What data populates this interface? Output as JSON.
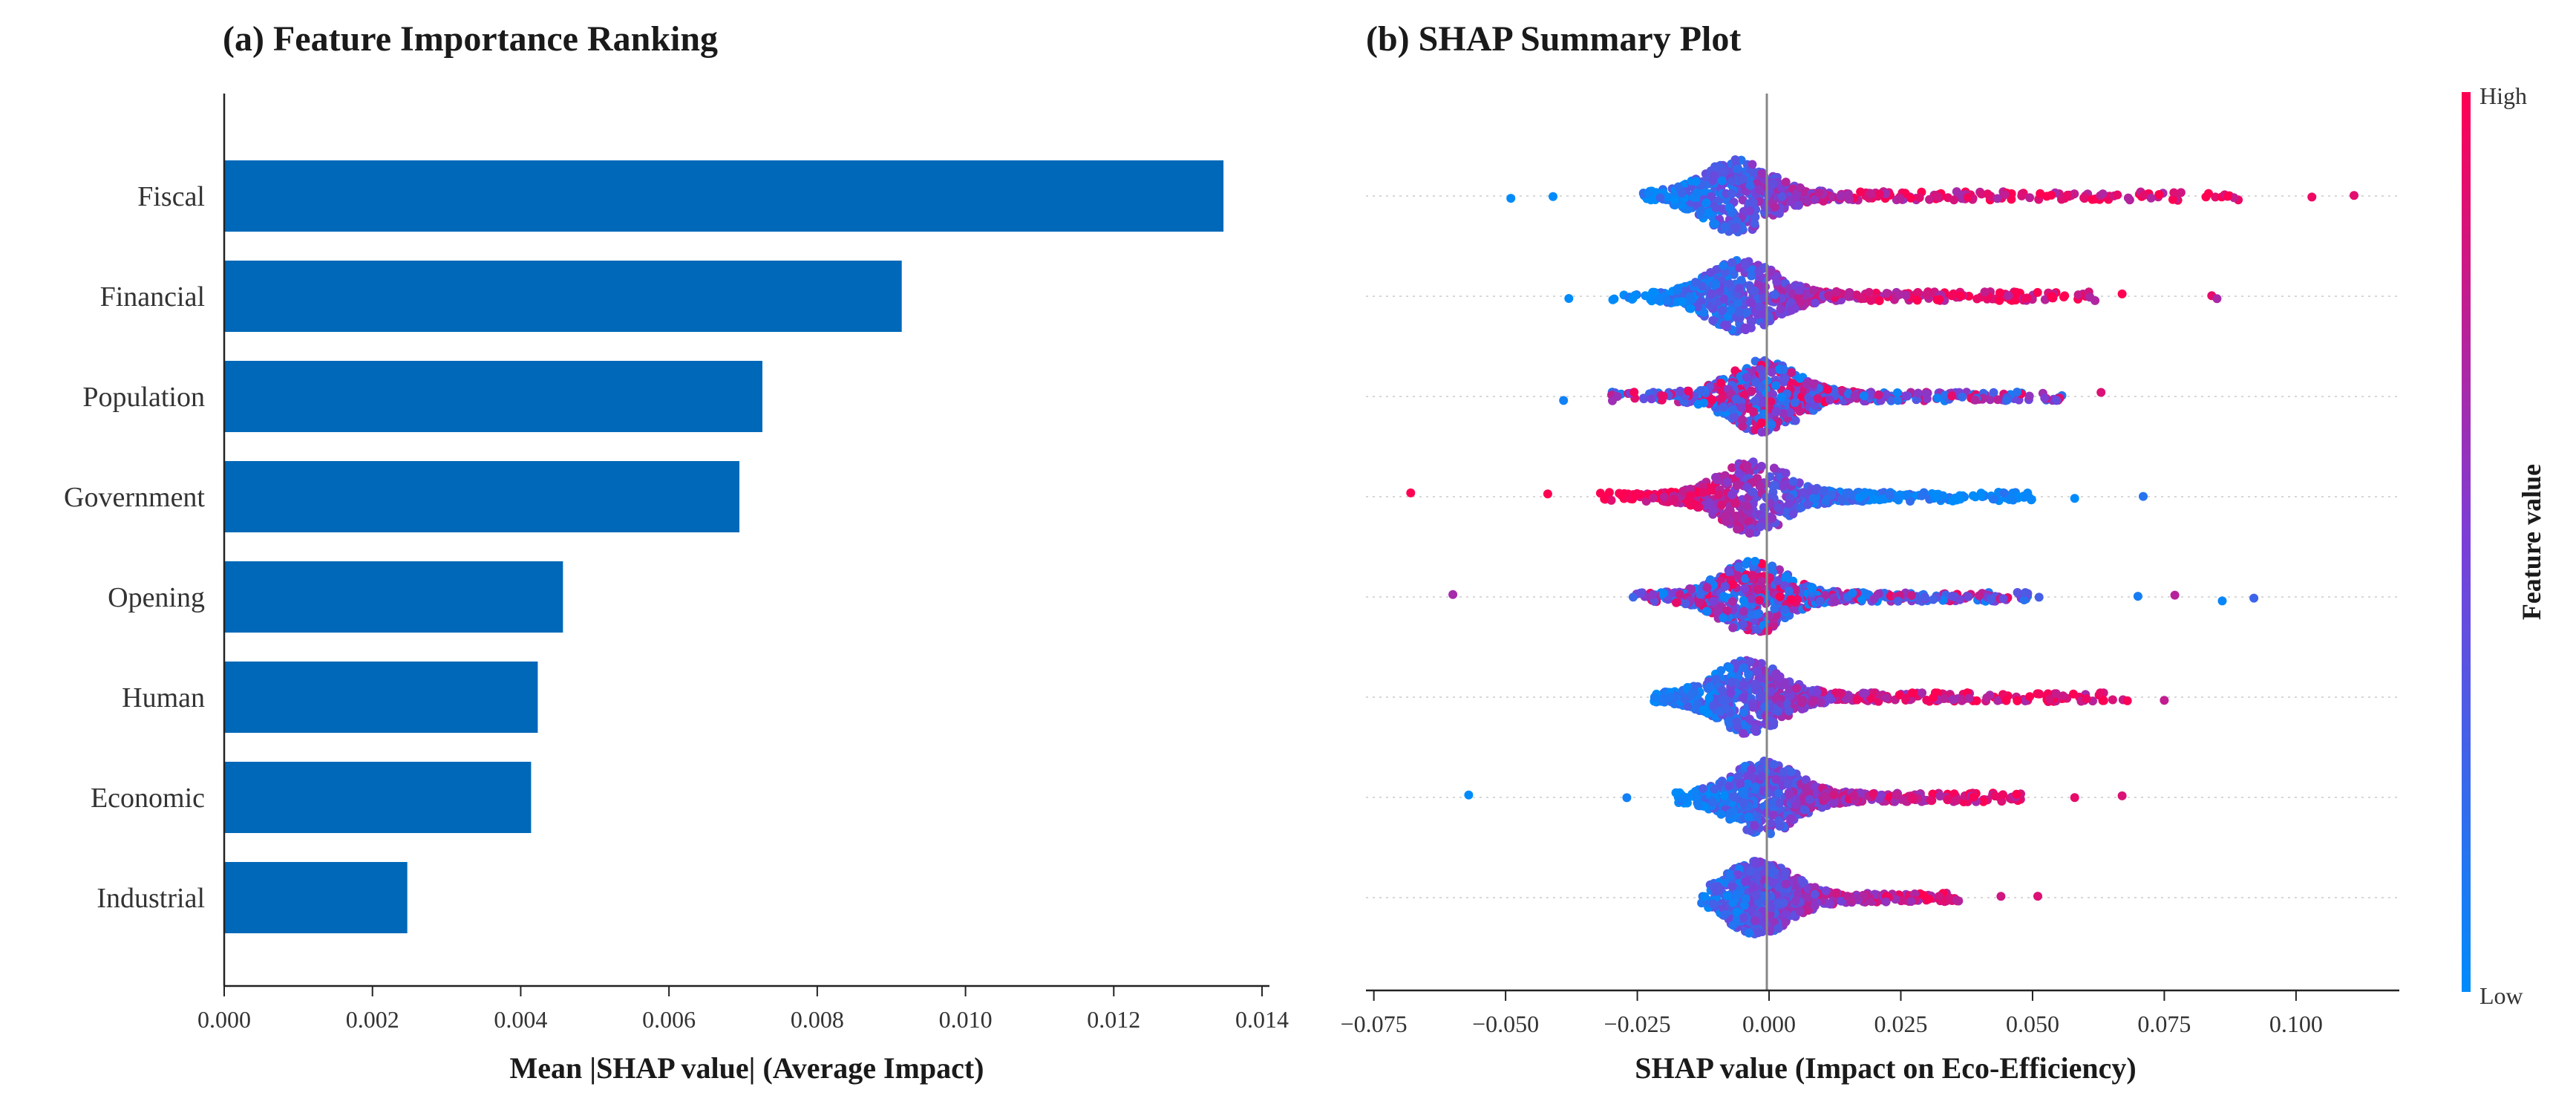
{
  "chart_data": [
    {
      "type": "bar",
      "orientation": "horizontal",
      "title": "(a) Feature Importance Ranking",
      "xlabel": "Mean |SHAP value| (Average Impact)",
      "ylabel": "",
      "xlim": [
        0,
        0.0141
      ],
      "xticks": [
        0.0,
        0.002,
        0.004,
        0.006,
        0.008,
        0.01,
        0.012,
        0.014
      ],
      "xtick_labels": [
        "0.000",
        "0.002",
        "0.004",
        "0.006",
        "0.008",
        "0.010",
        "0.012",
        "0.014"
      ],
      "categories": [
        "Fiscal",
        "Financial",
        "Population",
        "Government",
        "Opening",
        "Human",
        "Economic",
        "Industrial"
      ],
      "values": [
        0.01348,
        0.00914,
        0.00726,
        0.00695,
        0.00457,
        0.00423,
        0.00414,
        0.00247
      ],
      "bar_color": "#0068B8",
      "grid": false
    },
    {
      "type": "scatter",
      "subtype": "beeswarm",
      "title": "(b) SHAP Summary Plot",
      "xlabel": "SHAP value (Impact on Eco-Efficiency)",
      "xlim": [
        -0.0765,
        0.1196
      ],
      "xticks": [
        -0.075,
        -0.05,
        -0.025,
        0.0,
        0.025,
        0.05,
        0.075,
        0.1
      ],
      "xtick_labels": [
        "−0.075",
        "−0.050",
        "−0.025",
        "0.000",
        "0.025",
        "0.050",
        "0.075",
        "0.100"
      ],
      "zero_line": 0.0,
      "colorbar": {
        "title": "Feature value",
        "high_label": "High",
        "low_label": "Low",
        "low_color": "#008BFB",
        "high_color": "#FF0052"
      },
      "series": [
        {
          "name": "Fiscal",
          "min": -0.049,
          "max": 0.111,
          "core_left": -0.024,
          "core_right": 0.02,
          "peak": -0.006,
          "tail_right": 0.09,
          "outliers": [
            -0.049,
            -0.041,
            0.103,
            0.111
          ],
          "trend": "positive"
        },
        {
          "name": "Financial",
          "min": -0.038,
          "max": 0.085,
          "core_left": -0.03,
          "core_right": 0.014,
          "peak": -0.005,
          "tail_right": 0.062,
          "outliers": [
            -0.038,
            0.067,
            0.084,
            0.085
          ],
          "trend": "positive"
        },
        {
          "name": "Population",
          "min": -0.039,
          "max": 0.063,
          "core_left": -0.03,
          "core_right": 0.018,
          "peak": -0.001,
          "tail_right": 0.057,
          "outliers": [
            -0.039,
            0.063
          ],
          "trend": "mixed"
        },
        {
          "name": "Government",
          "min": -0.068,
          "max": 0.071,
          "core_left": -0.032,
          "core_right": 0.026,
          "peak": -0.003,
          "tail_right": 0.05,
          "outliers": [
            -0.068,
            -0.042,
            0.058,
            0.071
          ],
          "trend": "negative"
        },
        {
          "name": "Opening",
          "min": -0.06,
          "max": 0.092,
          "core_left": -0.026,
          "core_right": 0.02,
          "peak": -0.003,
          "tail_right": 0.052,
          "outliers": [
            -0.06,
            0.07,
            0.077,
            0.086,
            0.092
          ],
          "trend": "mixed"
        },
        {
          "name": "Human",
          "min": -0.024,
          "max": 0.075,
          "core_left": -0.022,
          "core_right": 0.02,
          "peak": -0.004,
          "tail_right": 0.068,
          "outliers": [
            0.045,
            0.068,
            0.075
          ],
          "trend": "positive"
        },
        {
          "name": "Economic",
          "min": -0.057,
          "max": 0.067,
          "core_left": -0.018,
          "core_right": 0.025,
          "peak": -0.001,
          "tail_right": 0.048,
          "outliers": [
            -0.057,
            -0.027,
            0.058,
            0.067
          ],
          "trend": "positive"
        },
        {
          "name": "Industrial",
          "min": -0.013,
          "max": 0.051,
          "core_left": -0.013,
          "core_right": 0.012,
          "peak": -0.002,
          "tail_right": 0.036,
          "outliers": [
            0.044,
            0.051
          ],
          "trend": "positive"
        }
      ]
    }
  ]
}
